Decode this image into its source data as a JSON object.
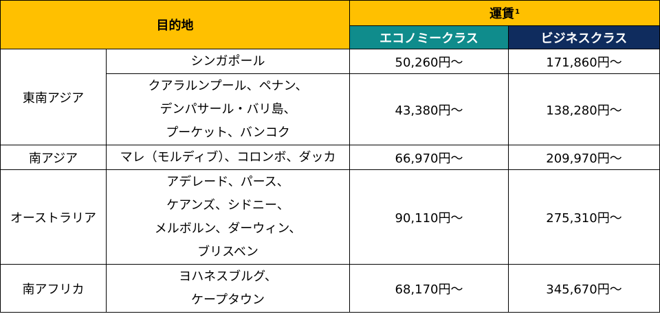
{
  "header": {
    "destination": "目的地",
    "fare": "運賃",
    "fare_note": "1",
    "economy": "エコノミークラス",
    "business": "ビジネスクラス"
  },
  "rows": [
    {
      "region": "東南アジア",
      "cities": [
        "シンガポール"
      ],
      "economy": "50,260円～",
      "business": "171,860円～"
    },
    {
      "region": "",
      "cities": [
        "クアラルンプール、ペナン、",
        "デンパサール・バリ島、",
        "プーケット、バンコク"
      ],
      "economy": "43,380円～",
      "business": "138,280円～"
    },
    {
      "region": "南アジア",
      "cities": [
        "マレ（モルディブ）、コロンボ、ダッカ"
      ],
      "economy": "66,970円～",
      "business": "209,970円～"
    },
    {
      "region": "オーストラリア",
      "cities": [
        "アデレード、パース、",
        "ケアンズ、シドニー、",
        "メルボルン、ダーウィン、",
        "ブリスベン"
      ],
      "economy": "90,110円～",
      "business": "275,310円～"
    },
    {
      "region": "南アフリカ",
      "cities": [
        "ヨハネスブルグ、",
        "ケープタウン"
      ],
      "economy": "68,170円～",
      "business": "345,670円～"
    }
  ],
  "colors": {
    "header_yellow": "#FFC000",
    "economy_teal": "#0F8C8C",
    "business_navy": "#0F2C5E"
  }
}
